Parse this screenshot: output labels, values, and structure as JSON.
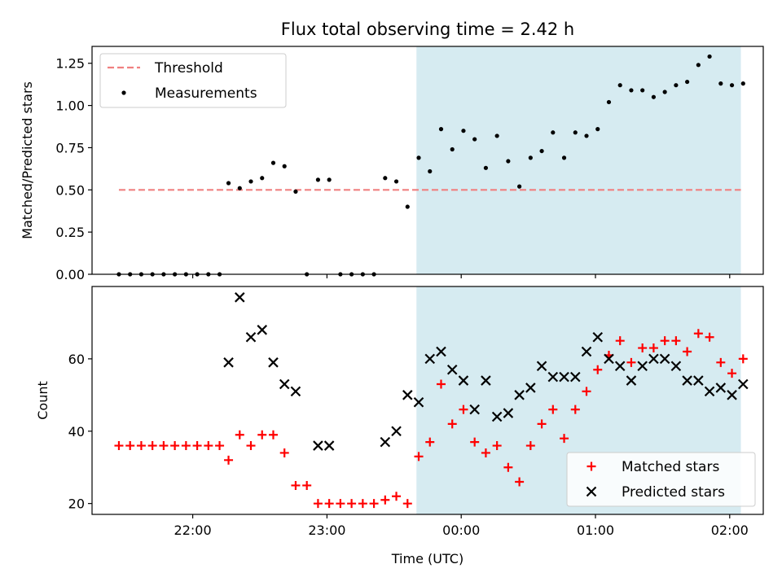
{
  "chart_data": [
    {
      "type": "scatter",
      "title": "Flux total observing time = 2.42 h",
      "xlabel": "",
      "ylabel": "Matched/Predicted stars",
      "ylim": [
        0,
        1.35
      ],
      "yticks": [
        "0.00",
        "0.25",
        "0.50",
        "0.75",
        "1.00",
        "1.25"
      ],
      "xlim": [
        "21:15",
        "02:15"
      ],
      "xticks_labels_shown": false,
      "shaded_interval": [
        "23:40",
        "02:05"
      ],
      "shade_color": "#d4eaf0",
      "legend_position": "upper-left",
      "threshold": {
        "name": "Threshold",
        "value": 0.5,
        "x_range": [
          "21:27",
          "02:05"
        ],
        "color": "#f08080",
        "style": "dashed"
      },
      "series": [
        {
          "name": "Measurements",
          "marker": "dot",
          "color": "#000000",
          "points": [
            [
              "21:27",
              0.0
            ],
            [
              "21:32",
              0.0
            ],
            [
              "21:37",
              0.0
            ],
            [
              "21:42",
              0.0
            ],
            [
              "21:47",
              0.0
            ],
            [
              "21:52",
              0.0
            ],
            [
              "21:57",
              0.0
            ],
            [
              "22:02",
              0.0
            ],
            [
              "22:07",
              0.0
            ],
            [
              "22:12",
              0.0
            ],
            [
              "22:16",
              0.54
            ],
            [
              "22:21",
              0.51
            ],
            [
              "22:26",
              0.55
            ],
            [
              "22:31",
              0.57
            ],
            [
              "22:36",
              0.66
            ],
            [
              "22:41",
              0.64
            ],
            [
              "22:46",
              0.49
            ],
            [
              "22:51",
              0.0
            ],
            [
              "22:56",
              0.56
            ],
            [
              "23:01",
              0.56
            ],
            [
              "23:06",
              0.0
            ],
            [
              "23:11",
              0.0
            ],
            [
              "23:16",
              0.0
            ],
            [
              "23:21",
              0.0
            ],
            [
              "23:26",
              0.57
            ],
            [
              "23:31",
              0.55
            ],
            [
              "23:36",
              0.4
            ],
            [
              "23:41",
              0.69
            ],
            [
              "23:46",
              0.61
            ],
            [
              "23:51",
              0.86
            ],
            [
              "23:56",
              0.74
            ],
            [
              "00:01",
              0.85
            ],
            [
              "00:06",
              0.8
            ],
            [
              "00:11",
              0.63
            ],
            [
              "00:16",
              0.82
            ],
            [
              "00:21",
              0.67
            ],
            [
              "00:26",
              0.52
            ],
            [
              "00:31",
              0.69
            ],
            [
              "00:36",
              0.73
            ],
            [
              "00:41",
              0.84
            ],
            [
              "00:46",
              0.69
            ],
            [
              "00:51",
              0.84
            ],
            [
              "00:56",
              0.82
            ],
            [
              "01:01",
              0.86
            ],
            [
              "01:06",
              1.02
            ],
            [
              "01:11",
              1.12
            ],
            [
              "01:16",
              1.09
            ],
            [
              "01:21",
              1.09
            ],
            [
              "01:26",
              1.05
            ],
            [
              "01:31",
              1.08
            ],
            [
              "01:36",
              1.12
            ],
            [
              "01:41",
              1.14
            ],
            [
              "01:46",
              1.24
            ],
            [
              "01:51",
              1.29
            ],
            [
              "01:56",
              1.13
            ],
            [
              "02:01",
              1.12
            ],
            [
              "02:06",
              1.13
            ]
          ]
        }
      ]
    },
    {
      "type": "scatter",
      "title": "",
      "xlabel": "Time (UTC)",
      "ylabel": "Count",
      "ylim": [
        17,
        80
      ],
      "yticks": [
        "20",
        "40",
        "60"
      ],
      "xlim": [
        "21:15",
        "02:15"
      ],
      "xticks": [
        "22:00",
        "23:00",
        "00:00",
        "01:00",
        "02:00"
      ],
      "shaded_interval": [
        "23:40",
        "02:05"
      ],
      "shade_color": "#d4eaf0",
      "legend_position": "lower-right",
      "series": [
        {
          "name": "Matched stars",
          "marker": "plus",
          "color": "#ff0000",
          "points": [
            [
              "21:27",
              36
            ],
            [
              "21:32",
              36
            ],
            [
              "21:37",
              36
            ],
            [
              "21:42",
              36
            ],
            [
              "21:47",
              36
            ],
            [
              "21:52",
              36
            ],
            [
              "21:57",
              36
            ],
            [
              "22:02",
              36
            ],
            [
              "22:07",
              36
            ],
            [
              "22:12",
              36
            ],
            [
              "22:16",
              32
            ],
            [
              "22:21",
              39
            ],
            [
              "22:26",
              36
            ],
            [
              "22:31",
              39
            ],
            [
              "22:36",
              39
            ],
            [
              "22:41",
              34
            ],
            [
              "22:46",
              25
            ],
            [
              "22:51",
              25
            ],
            [
              "22:56",
              20
            ],
            [
              "23:01",
              20
            ],
            [
              "23:06",
              20
            ],
            [
              "23:11",
              20
            ],
            [
              "23:16",
              20
            ],
            [
              "23:21",
              20
            ],
            [
              "23:26",
              21
            ],
            [
              "23:31",
              22
            ],
            [
              "23:36",
              20
            ],
            [
              "23:41",
              33
            ],
            [
              "23:46",
              37
            ],
            [
              "23:51",
              53
            ],
            [
              "23:56",
              42
            ],
            [
              "00:01",
              46
            ],
            [
              "00:06",
              37
            ],
            [
              "00:11",
              34
            ],
            [
              "00:16",
              36
            ],
            [
              "00:21",
              30
            ],
            [
              "00:26",
              26
            ],
            [
              "00:31",
              36
            ],
            [
              "00:36",
              42
            ],
            [
              "00:41",
              46
            ],
            [
              "00:46",
              38
            ],
            [
              "00:51",
              46
            ],
            [
              "00:56",
              51
            ],
            [
              "01:01",
              57
            ],
            [
              "01:06",
              61
            ],
            [
              "01:11",
              65
            ],
            [
              "01:16",
              59
            ],
            [
              "01:21",
              63
            ],
            [
              "01:26",
              63
            ],
            [
              "01:31",
              65
            ],
            [
              "01:36",
              65
            ],
            [
              "01:41",
              62
            ],
            [
              "01:46",
              67
            ],
            [
              "01:51",
              66
            ],
            [
              "01:56",
              59
            ],
            [
              "02:01",
              56
            ],
            [
              "02:06",
              60
            ]
          ]
        },
        {
          "name": "Predicted stars",
          "marker": "x",
          "color": "#000000",
          "points": [
            [
              "22:16",
              59
            ],
            [
              "22:21",
              77
            ],
            [
              "22:26",
              66
            ],
            [
              "22:31",
              68
            ],
            [
              "22:36",
              59
            ],
            [
              "22:41",
              53
            ],
            [
              "22:46",
              51
            ],
            [
              "22:56",
              36
            ],
            [
              "23:01",
              36
            ],
            [
              "23:26",
              37
            ],
            [
              "23:31",
              40
            ],
            [
              "23:36",
              50
            ],
            [
              "23:41",
              48
            ],
            [
              "23:46",
              60
            ],
            [
              "23:51",
              62
            ],
            [
              "23:56",
              57
            ],
            [
              "00:01",
              54
            ],
            [
              "00:06",
              46
            ],
            [
              "00:11",
              54
            ],
            [
              "00:16",
              44
            ],
            [
              "00:21",
              45
            ],
            [
              "00:26",
              50
            ],
            [
              "00:31",
              52
            ],
            [
              "00:36",
              58
            ],
            [
              "00:41",
              55
            ],
            [
              "00:46",
              55
            ],
            [
              "00:51",
              55
            ],
            [
              "00:56",
              62
            ],
            [
              "01:01",
              66
            ],
            [
              "01:06",
              60
            ],
            [
              "01:11",
              58
            ],
            [
              "01:16",
              54
            ],
            [
              "01:21",
              58
            ],
            [
              "01:26",
              60
            ],
            [
              "01:31",
              60
            ],
            [
              "01:36",
              58
            ],
            [
              "01:41",
              54
            ],
            [
              "01:46",
              54
            ],
            [
              "01:51",
              51
            ],
            [
              "01:56",
              52
            ],
            [
              "02:01",
              50
            ],
            [
              "02:06",
              53
            ]
          ]
        }
      ]
    }
  ]
}
